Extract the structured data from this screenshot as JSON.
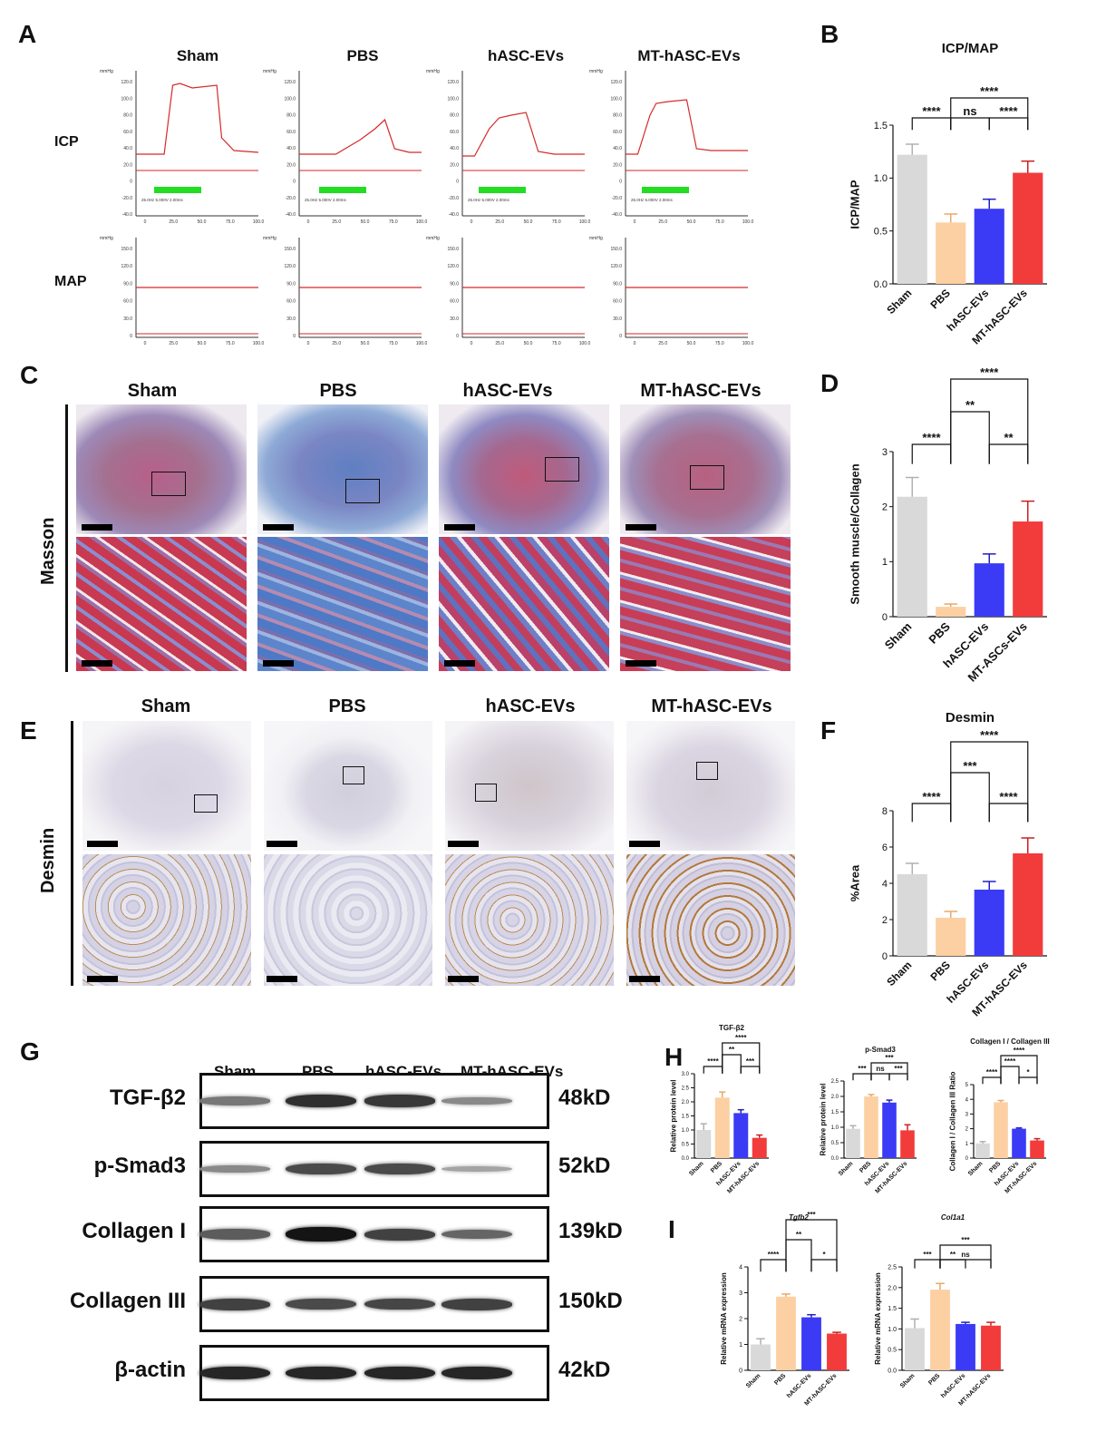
{
  "panels": {
    "A": "A",
    "B": "B",
    "C": "C",
    "D": "D",
    "E": "E",
    "F": "F",
    "G": "G",
    "H": "H",
    "I": "I"
  },
  "groups": [
    "Sham",
    "PBS",
    "hASC-EVs",
    "MT-hASC-EVs"
  ],
  "panelA": {
    "row_labels": [
      "ICP",
      "MAP"
    ],
    "icp_yticks": [
      "120.0",
      "100.0",
      "80.0",
      "60.0",
      "40.0",
      "20.0",
      "0",
      "-20.0",
      "-40.0"
    ],
    "map_yticks": [
      "150.0",
      "120.0",
      "90.0",
      "60.0",
      "30.0",
      "0"
    ],
    "xticks": [
      "0",
      "25.0",
      "50.0",
      "75.0",
      "100.0"
    ],
    "unit_label": "mmHg",
    "stim_label": "25.0Hz 5.000V 2.00ms",
    "trace_color": "#d42a2a",
    "stim_color": "#22dd22"
  },
  "panelC": {
    "row_label": "Masson",
    "titles": [
      "Sham",
      "PBS",
      "hASC-EVs",
      "MT-hASC-EVs"
    ]
  },
  "panelE": {
    "row_label": "Desmin",
    "titles": [
      "Sham",
      "PBS",
      "hASC-EVs",
      "MT-hASC-EVs"
    ]
  },
  "panelG": {
    "lanes": [
      "Sham",
      "PBS",
      "hASC-EVs",
      "MT-hASC-EVs"
    ],
    "rows": [
      {
        "name": "TGF-β2",
        "kd": "48kD",
        "intensity": [
          0.45,
          0.85,
          0.8,
          0.35
        ]
      },
      {
        "name": "p-Smad3",
        "kd": "52kD",
        "intensity": [
          0.35,
          0.7,
          0.7,
          0.2
        ]
      },
      {
        "name": "Collagen I",
        "kd": "139kD",
        "intensity": [
          0.6,
          1.0,
          0.75,
          0.55
        ]
      },
      {
        "name": "Collagen III",
        "kd": "150kD",
        "intensity": [
          0.75,
          0.7,
          0.72,
          0.75
        ]
      },
      {
        "name": "β-actin",
        "kd": "42kD",
        "intensity": [
          0.9,
          0.9,
          0.9,
          0.9
        ]
      }
    ]
  },
  "colors": {
    "sham": "#d9d9d9",
    "pbs": "#fcd0a3",
    "hasc": "#3b3bf5",
    "mt": "#f23b3b"
  },
  "chart_data": [
    {
      "id": "B",
      "type": "bar",
      "title": "ICP/MAP",
      "ylabel": "ICP/MAP",
      "categories": [
        "Sham",
        "PBS",
        "hASC-EVs",
        "MT-hASC-EVs"
      ],
      "values": [
        1.22,
        0.58,
        0.71,
        1.05
      ],
      "errors": [
        0.1,
        0.08,
        0.09,
        0.11
      ],
      "ylim": [
        0,
        1.5
      ],
      "yticks": [
        "0.0",
        "0.5",
        "1.0",
        "1.5"
      ],
      "sig": [
        {
          "a": 0,
          "b": 1,
          "label": "****",
          "level": 0
        },
        {
          "a": 1,
          "b": 2,
          "label": "ns",
          "level": 0
        },
        {
          "a": 2,
          "b": 3,
          "label": "****",
          "level": 0
        },
        {
          "a": 1,
          "b": 3,
          "label": "****",
          "level": 1
        }
      ]
    },
    {
      "id": "D",
      "type": "bar",
      "title": "",
      "ylabel": "Smooth muscle/Collagen",
      "categories": [
        "Sham",
        "PBS",
        "hASC-EVs",
        "MT-ASCs-EVs"
      ],
      "values": [
        2.18,
        0.18,
        0.97,
        1.73
      ],
      "errors": [
        0.35,
        0.05,
        0.17,
        0.37
      ],
      "ylim": [
        0,
        3
      ],
      "yticks": [
        "0",
        "1",
        "2",
        "3"
      ],
      "sig": [
        {
          "a": 0,
          "b": 1,
          "label": "****",
          "level": 0
        },
        {
          "a": 2,
          "b": 3,
          "label": "**",
          "level": 0
        },
        {
          "a": 1,
          "b": 2,
          "label": "**",
          "level": 1
        },
        {
          "a": 1,
          "b": 3,
          "label": "****",
          "level": 2
        }
      ]
    },
    {
      "id": "F",
      "type": "bar",
      "title": "Desmin",
      "ylabel": "%Area",
      "categories": [
        "Sham",
        "PBS",
        "hASC-EVs",
        "MT-hASC-EVs"
      ],
      "values": [
        4.5,
        2.1,
        3.65,
        5.65
      ],
      "errors": [
        0.6,
        0.35,
        0.45,
        0.85
      ],
      "ylim": [
        0,
        8
      ],
      "yticks": [
        "0",
        "2",
        "4",
        "6",
        "8"
      ],
      "sig": [
        {
          "a": 0,
          "b": 1,
          "label": "****",
          "level": 0
        },
        {
          "a": 2,
          "b": 3,
          "label": "****",
          "level": 0
        },
        {
          "a": 1,
          "b": 2,
          "label": "***",
          "level": 1
        },
        {
          "a": 1,
          "b": 3,
          "label": "****",
          "level": 2
        }
      ]
    },
    {
      "id": "H1",
      "type": "bar",
      "title": "TGF-β2",
      "ylabel": "Relative protein level",
      "categories": [
        "Sham",
        "PBS",
        "hASC-EVs",
        "MT-hASC-EVs"
      ],
      "values": [
        1.0,
        2.15,
        1.6,
        0.72
      ],
      "errors": [
        0.22,
        0.2,
        0.12,
        0.1
      ],
      "ylim": [
        0,
        3
      ],
      "yticks": [
        "0.0",
        "0.5",
        "1.0",
        "1.5",
        "2.0",
        "2.5",
        "3.0"
      ],
      "sig": [
        {
          "a": 0,
          "b": 1,
          "label": "****",
          "level": 0
        },
        {
          "a": 2,
          "b": 3,
          "label": "***",
          "level": 0
        },
        {
          "a": 1,
          "b": 2,
          "label": "**",
          "level": 1
        },
        {
          "a": 1,
          "b": 3,
          "label": "****",
          "level": 2
        }
      ]
    },
    {
      "id": "H2",
      "type": "bar",
      "title": "p-Smad3",
      "ylabel": "Relative protein level",
      "categories": [
        "Sham",
        "PBS",
        "hASC-EVs",
        "MT-hASC-EVs"
      ],
      "values": [
        0.95,
        2.0,
        1.8,
        0.9
      ],
      "errors": [
        0.1,
        0.06,
        0.08,
        0.18
      ],
      "ylim": [
        0,
        2.5
      ],
      "yticks": [
        "0.0",
        "0.5",
        "1.0",
        "1.5",
        "2.0",
        "2.5"
      ],
      "sig": [
        {
          "a": 0,
          "b": 1,
          "label": "***",
          "level": 0
        },
        {
          "a": 1,
          "b": 2,
          "label": "ns",
          "level": 0
        },
        {
          "a": 2,
          "b": 3,
          "label": "***",
          "level": 0
        },
        {
          "a": 1,
          "b": 3,
          "label": "***",
          "level": 1
        }
      ]
    },
    {
      "id": "H3",
      "type": "bar",
      "title": "Collagen I / Collagen III",
      "ylabel": "Collagen I / Collagen III Ratio",
      "categories": [
        "Sham",
        "PBS",
        "hASC-EVs",
        "MT-hASC-EVs"
      ],
      "values": [
        1.0,
        3.8,
        2.0,
        1.2
      ],
      "errors": [
        0.12,
        0.12,
        0.05,
        0.12
      ],
      "ylim": [
        0,
        5
      ],
      "yticks": [
        "0",
        "1",
        "2",
        "3",
        "4",
        "5"
      ],
      "sig": [
        {
          "a": 0,
          "b": 1,
          "label": "****",
          "level": 0
        },
        {
          "a": 2,
          "b": 3,
          "label": "*",
          "level": 0
        },
        {
          "a": 1,
          "b": 2,
          "label": "****",
          "level": 1
        },
        {
          "a": 1,
          "b": 3,
          "label": "****",
          "level": 2
        }
      ]
    },
    {
      "id": "I1",
      "type": "bar",
      "title": "Tgfb2",
      "ylabel": "Relative mRNA expression",
      "categories": [
        "Sham",
        "PBS",
        "hASC-EVs",
        "MT-hASC-EVs"
      ],
      "values": [
        1.0,
        2.85,
        2.05,
        1.42
      ],
      "errors": [
        0.22,
        0.1,
        0.1,
        0.05
      ],
      "ylim": [
        0,
        4
      ],
      "yticks": [
        "0",
        "1",
        "2",
        "3",
        "4"
      ],
      "sig": [
        {
          "a": 0,
          "b": 1,
          "label": "****",
          "level": 0
        },
        {
          "a": 2,
          "b": 3,
          "label": "*",
          "level": 0
        },
        {
          "a": 1,
          "b": 2,
          "label": "**",
          "level": 1
        },
        {
          "a": 1,
          "b": 3,
          "label": "***",
          "level": 2
        }
      ]
    },
    {
      "id": "I2",
      "type": "bar",
      "title": "Col1a1",
      "ylabel": "Relative mRNA expression",
      "categories": [
        "Sham",
        "PBS",
        "hASC-EVs",
        "MT-hASC-EVs"
      ],
      "values": [
        1.02,
        1.95,
        1.12,
        1.08
      ],
      "errors": [
        0.22,
        0.15,
        0.04,
        0.08
      ],
      "ylim": [
        0,
        2.5
      ],
      "yticks": [
        "0.0",
        "0.5",
        "1.0",
        "1.5",
        "2.0",
        "2.5"
      ],
      "sig": [
        {
          "a": 0,
          "b": 1,
          "label": "***",
          "level": 0
        },
        {
          "a": 1,
          "b": 2,
          "label": "**",
          "level": 0
        },
        {
          "a": 1,
          "b": 3,
          "label": "ns",
          "level": 0
        },
        {
          "a": 1,
          "b": 3,
          "label": "***",
          "level": 1
        }
      ]
    }
  ]
}
